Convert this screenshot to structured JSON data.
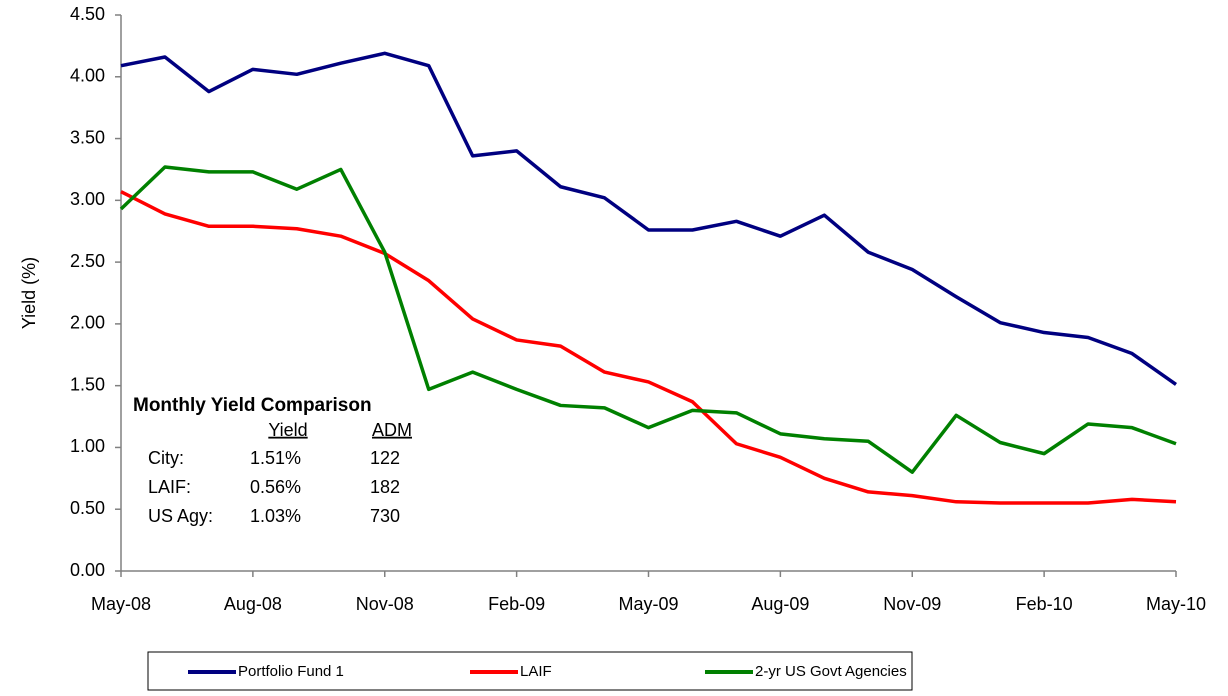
{
  "chart_data": {
    "type": "line",
    "y_label": "Yield (%)",
    "categories": [
      "May-08",
      null,
      null,
      "Aug-08",
      null,
      null,
      "Nov-08",
      null,
      null,
      "Feb-09",
      null,
      null,
      "May-09",
      null,
      null,
      "Aug-09",
      null,
      null,
      "Nov-09",
      null,
      null,
      "Feb-10",
      null,
      null,
      "May-10"
    ],
    "series": [
      {
        "name": "Portfolio Fund 1",
        "color": "#000080",
        "values": [
          4.09,
          4.16,
          3.88,
          4.06,
          4.02,
          4.11,
          4.19,
          4.09,
          3.36,
          3.4,
          3.11,
          3.02,
          2.76,
          2.76,
          2.83,
          2.71,
          2.88,
          2.58,
          2.44,
          2.22,
          2.01,
          1.93,
          1.89,
          1.76,
          1.51
        ]
      },
      {
        "name": "LAIF",
        "color": "#ff0000",
        "values": [
          3.07,
          2.89,
          2.79,
          2.79,
          2.77,
          2.71,
          2.57,
          2.35,
          2.04,
          1.87,
          1.82,
          1.61,
          1.53,
          1.37,
          1.03,
          0.92,
          0.75,
          0.64,
          0.61,
          0.56,
          0.55,
          0.55,
          0.55,
          0.58,
          0.56
        ]
      },
      {
        "name": "2-yr US Govt Agencies",
        "color": "#008000",
        "values": [
          2.93,
          3.27,
          3.23,
          3.23,
          3.09,
          3.25,
          2.58,
          1.47,
          1.61,
          1.47,
          1.34,
          1.32,
          1.16,
          1.3,
          1.28,
          1.11,
          1.07,
          1.05,
          0.8,
          1.26,
          1.04,
          0.95,
          1.19,
          1.16,
          1.03
        ]
      }
    ],
    "ylim": [
      0,
      4.5
    ],
    "yticks": [
      {
        "value": 0,
        "label": "0.00"
      },
      {
        "value": 0.5,
        "label": "0.50"
      },
      {
        "value": 1,
        "label": "1.00"
      },
      {
        "value": 1.5,
        "label": "1.50"
      },
      {
        "value": 2,
        "label": "2.00"
      },
      {
        "value": 2.5,
        "label": "2.50"
      },
      {
        "value": 3,
        "label": "3.00"
      },
      {
        "value": 3.5,
        "label": "3.50"
      },
      {
        "value": 4,
        "label": "4.00"
      },
      {
        "value": 4.5,
        "label": "4.50"
      }
    ],
    "grid": false,
    "legend": "bottom",
    "annotation": {
      "title": "Monthly Yield Comparison",
      "headers": [
        "Yield",
        "ADM"
      ],
      "rows": [
        [
          "City:",
          "1.51%",
          "122"
        ],
        [
          "LAIF:",
          "0.56%",
          "182"
        ],
        [
          "US Agy:",
          "1.03%",
          "730"
        ]
      ]
    }
  }
}
